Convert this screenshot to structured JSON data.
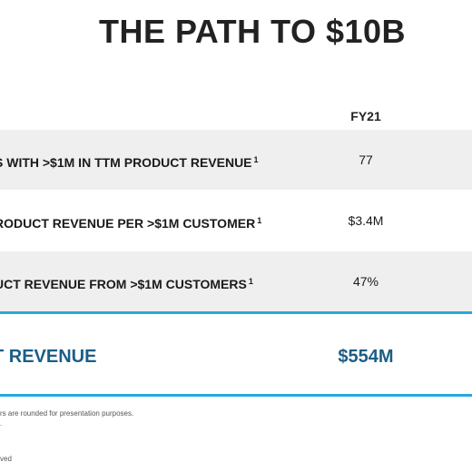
{
  "title": "THE PATH TO $10B",
  "table": {
    "column_header": "FY21",
    "rows": [
      {
        "label": "S WITH >$1M IN TTM PRODUCT REVENUE",
        "footnote_mark": "1",
        "value": "77"
      },
      {
        "label": "RODUCT REVENUE PER >$1M CUSTOMER",
        "footnote_mark": "1",
        "value": "$3.4M"
      },
      {
        "label": "UCT REVENUE FROM >$1M CUSTOMERS",
        "footnote_mark": "1",
        "value": "47%"
      }
    ],
    "total": {
      "label": "T REVENUE",
      "value": "$554M"
    }
  },
  "footnotes": [
    "rs are rounded for presentation purposes.",
    ".",
    "ved"
  ],
  "colors": {
    "accent_rule": "#29a8e0",
    "total_text": "#1b5e86",
    "shaded_row": "#efefef"
  }
}
